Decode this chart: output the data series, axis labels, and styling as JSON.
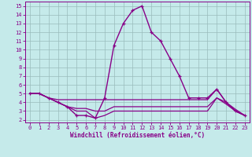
{
  "xlabel": "Windchill (Refroidissement éolien,°C)",
  "bg_color": "#c5eaea",
  "line_color": "#880088",
  "grid_color": "#99bbbb",
  "x_ticks": [
    0,
    1,
    2,
    3,
    4,
    5,
    6,
    7,
    8,
    9,
    10,
    11,
    12,
    13,
    14,
    15,
    16,
    17,
    18,
    19,
    20,
    21,
    22,
    23
  ],
  "y_ticks": [
    2,
    3,
    4,
    5,
    6,
    7,
    8,
    9,
    10,
    11,
    12,
    13,
    14,
    15
  ],
  "ylim": [
    1.7,
    15.5
  ],
  "xlim": [
    -0.5,
    23.5
  ],
  "series": [
    {
      "y": [
        5.0,
        5.0,
        4.5,
        4.0,
        3.5,
        2.5,
        2.5,
        2.2,
        4.5,
        10.5,
        13.0,
        14.5,
        15.0,
        12.0,
        11.0,
        9.0,
        7.0,
        4.5,
        4.5,
        4.5,
        5.5,
        4.0,
        3.0,
        2.5
      ],
      "marker": true,
      "lw": 1.0
    },
    {
      "y": [
        5.0,
        5.0,
        4.5,
        4.3,
        4.3,
        4.3,
        4.3,
        4.3,
        4.3,
        4.3,
        4.3,
        4.3,
        4.3,
        4.3,
        4.3,
        4.3,
        4.3,
        4.3,
        4.3,
        4.3,
        5.5,
        4.0,
        3.0,
        2.5
      ],
      "marker": false,
      "lw": 0.9
    },
    {
      "y": [
        5.0,
        5.0,
        4.5,
        4.0,
        3.5,
        3.3,
        3.3,
        3.0,
        3.0,
        3.5,
        3.5,
        3.5,
        3.5,
        3.5,
        3.5,
        3.5,
        3.5,
        3.5,
        3.5,
        3.5,
        4.5,
        4.0,
        3.2,
        2.5
      ],
      "marker": false,
      "lw": 0.9
    },
    {
      "y": [
        5.0,
        5.0,
        4.5,
        4.0,
        3.5,
        3.0,
        3.0,
        2.2,
        2.5,
        3.0,
        3.0,
        3.0,
        3.0,
        3.0,
        3.0,
        3.0,
        3.0,
        3.0,
        3.0,
        3.0,
        4.5,
        3.8,
        3.0,
        2.5
      ],
      "marker": false,
      "lw": 0.9
    }
  ],
  "xlabel_fontsize": 5.5,
  "tick_fontsize": 5.0
}
